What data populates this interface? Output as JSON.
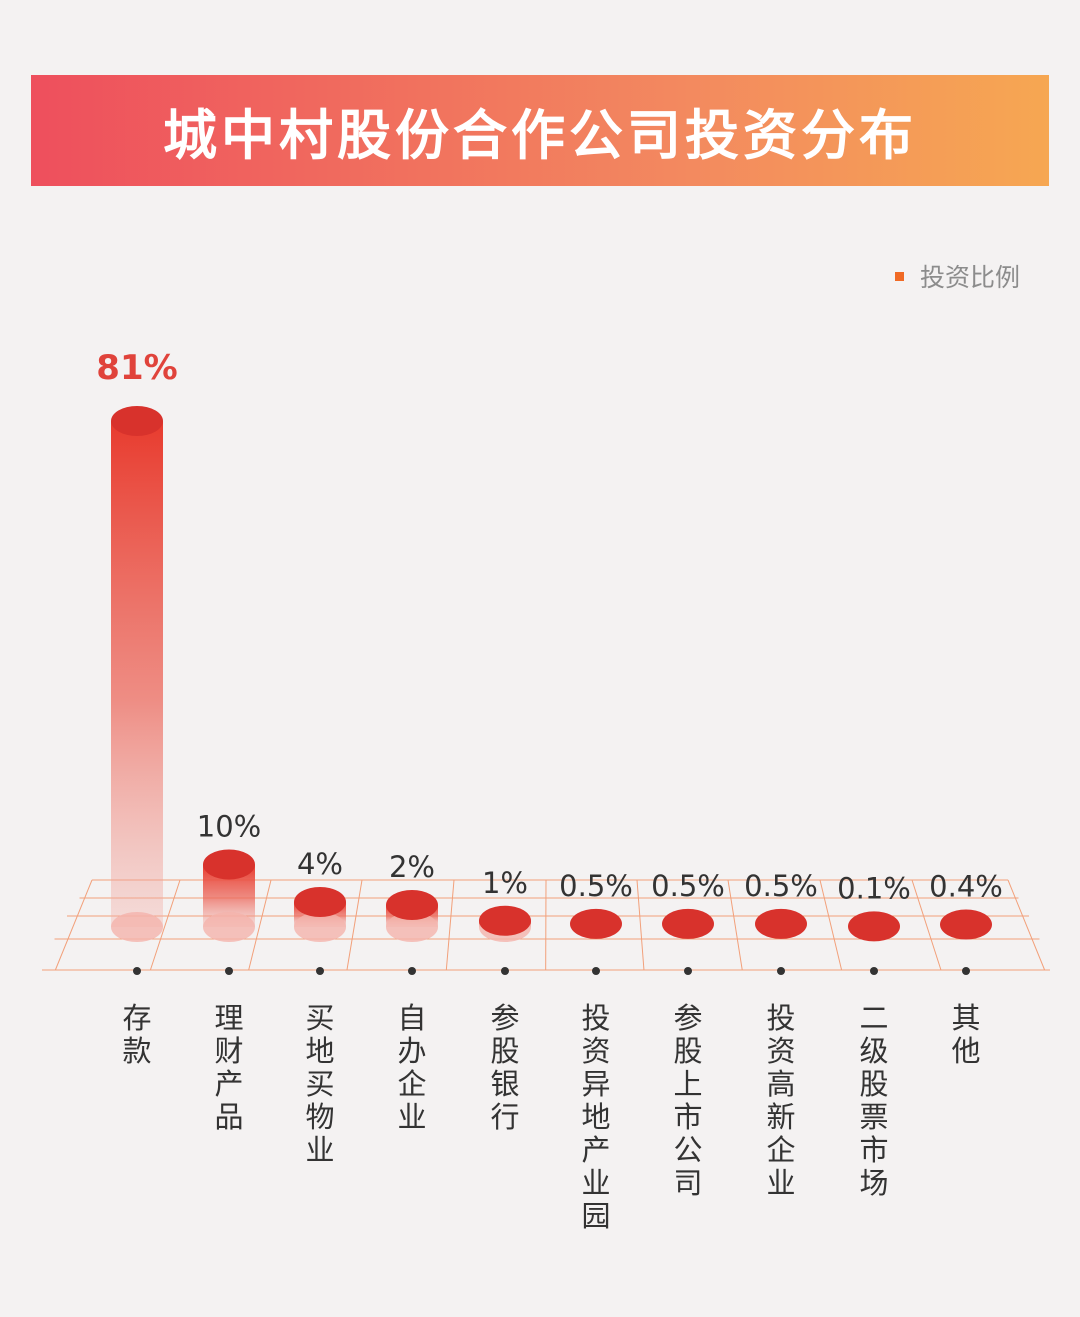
{
  "title": "城中村股份合作公司投资分布",
  "legend": {
    "label": "投资比例",
    "color": "#f06a25"
  },
  "colors": {
    "bar_top": "#d8322c",
    "bar_body": "#e83b2e",
    "grid": "#f2a07a",
    "label_highlight": "#e0433b",
    "label_default": "#333333",
    "category_text": "#333333"
  },
  "chart_data": {
    "type": "bar",
    "categories": [
      "存款",
      "理财产品",
      "买地买物业",
      "自办企业",
      "参股银行",
      "投资异地产业园",
      "参股上市公司",
      "投资高新企业",
      "二级股票市场",
      "其他"
    ],
    "values": [
      81,
      10,
      4,
      2,
      1,
      0.5,
      0.5,
      0.5,
      0.1,
      0.4
    ],
    "value_labels": [
      "81%",
      "10%",
      "4%",
      "2%",
      "1%",
      "0.5%",
      "0.5%",
      "0.5%",
      "0.1%",
      "0.4%"
    ],
    "series": [
      {
        "name": "投资比例",
        "values": [
          81,
          10,
          4,
          2,
          1,
          0.5,
          0.5,
          0.5,
          0.1,
          0.4
        ]
      }
    ],
    "ylim": [
      0,
      81
    ],
    "grid": true,
    "legend_position": "top-right"
  }
}
